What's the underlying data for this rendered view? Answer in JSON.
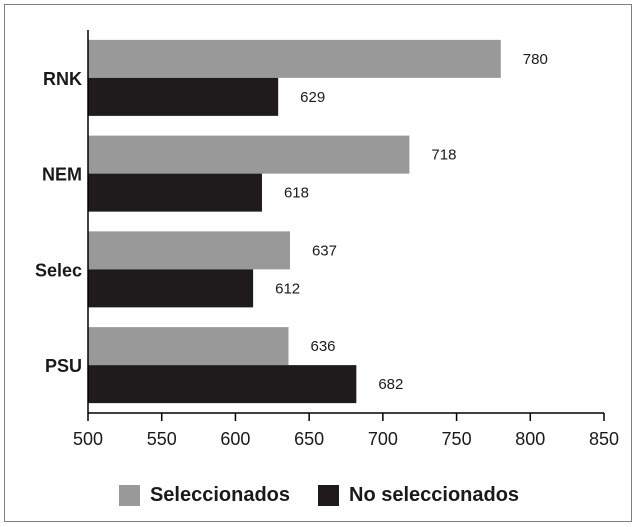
{
  "chart_data": {
    "type": "bar",
    "orientation": "horizontal",
    "categories": [
      "RNK",
      "NEM",
      "Selec",
      "PSU"
    ],
    "series": [
      {
        "name": "Seleccionados",
        "color": "#999999",
        "values": [
          780,
          718,
          637,
          636
        ]
      },
      {
        "name": "No seleccionados",
        "color": "#1f1b1c",
        "values": [
          629,
          618,
          612,
          682
        ]
      }
    ],
    "xlim": [
      500,
      850
    ],
    "xticks": [
      "500",
      "550",
      "600",
      "650",
      "700",
      "750",
      "800",
      "850"
    ],
    "grid": false,
    "legend_position": "bottom"
  }
}
